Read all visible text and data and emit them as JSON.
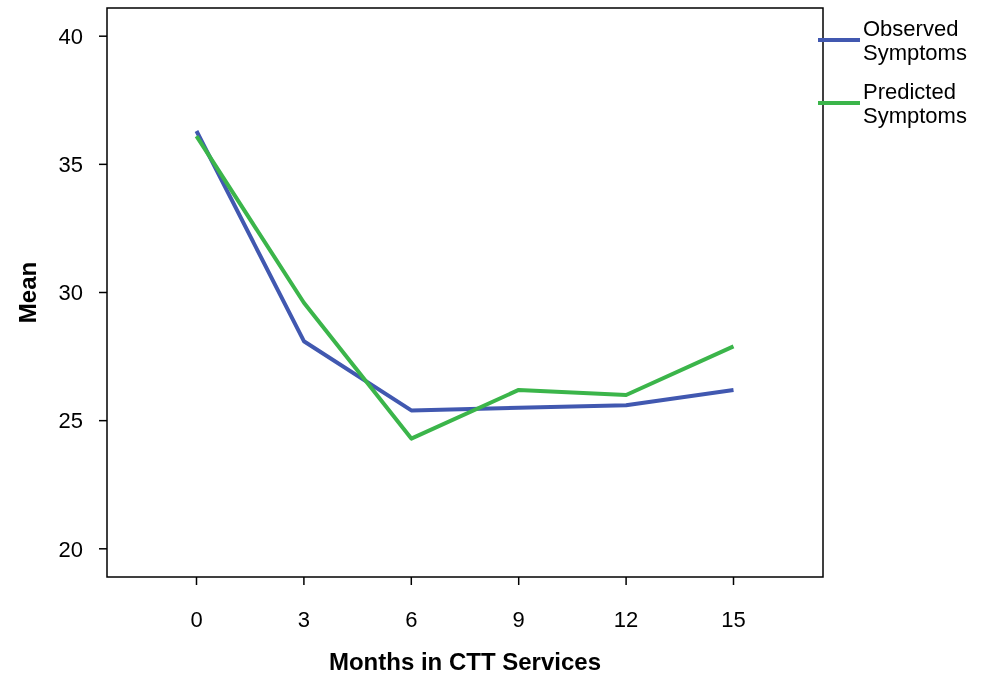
{
  "chart_data": {
    "type": "line",
    "xlabel": "Months in CTT Services",
    "ylabel": "Mean",
    "x": [
      0,
      3,
      6,
      9,
      12,
      15
    ],
    "series": [
      {
        "name": "Observed Symptoms",
        "color": "#4158b0",
        "values": [
          36.3,
          28.1,
          25.4,
          25.5,
          25.6,
          26.2
        ]
      },
      {
        "name": "Predicted Symptoms",
        "color": "#3bb54a",
        "values": [
          36.1,
          29.6,
          24.3,
          26.2,
          26.0,
          27.9
        ]
      }
    ],
    "xlim": [
      -2.5,
      17.5
    ],
    "ylim": [
      18.9,
      41.1
    ],
    "xticks": [
      0,
      3,
      6,
      9,
      12,
      15
    ],
    "yticks": [
      20,
      25,
      30,
      35,
      40
    ],
    "grid": false,
    "legend": "top right",
    "marker": "none",
    "line_style": "solid"
  }
}
